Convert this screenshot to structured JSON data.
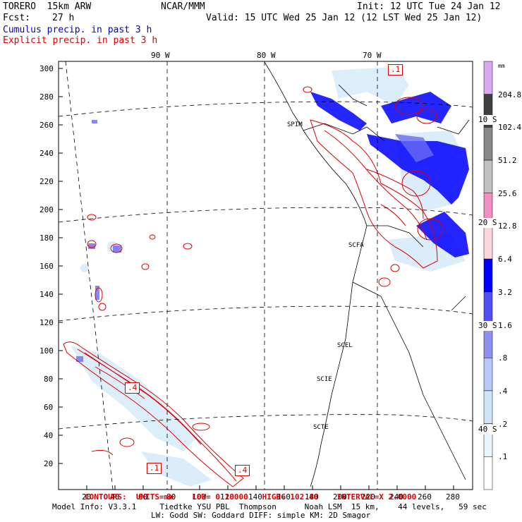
{
  "header": {
    "model": "TORERO  15km ARW",
    "org": "NCAR/MMM",
    "init": "Init: 12 UTC Tue 24 Jan 12",
    "fcst_label": "Fcst:",
    "fcst_value": "27 h",
    "valid": "Valid: 15 UTC Wed 25 Jan 12 (12 LST Wed 25 Jan 12)",
    "field1": "Cumulus precip. in past 3 h",
    "field2": "Explicit precip. in past 3 h"
  },
  "map": {
    "longitude_labels": [
      "90 W",
      "80 W",
      "70 W"
    ],
    "latitude_labels": [
      "10 S",
      "20 S",
      "30 S",
      "40 S"
    ],
    "y_ticks": [
      "20",
      "40",
      "60",
      "80",
      "100",
      "120",
      "140",
      "160",
      "180",
      "200",
      "220",
      "240",
      "260",
      "280",
      "300"
    ],
    "x_ticks": [
      "20",
      "40",
      "60",
      "80",
      "100",
      "120",
      "140",
      "160",
      "180",
      "200",
      "220",
      "240",
      "260",
      "280"
    ],
    "stations": [
      "SPIM",
      "SCFA",
      "SCEL",
      "SCIE",
      "SCTE"
    ],
    "contour_boxes": [
      ".1",
      ".4",
      ".1",
      ".4"
    ]
  },
  "colorbar": {
    "unit": "mm",
    "levels": [
      "204.8",
      "102.4",
      "51.2",
      "25.6",
      "12.8",
      "6.4",
      "3.2",
      "1.6",
      ".8",
      ".4",
      ".2",
      ".1"
    ],
    "colors": [
      "#d8a8f0",
      "#404040",
      "#888888",
      "#c0c0c0",
      "#f090c0",
      "#fcd4dc",
      "#0000ff",
      "#5050f0",
      "#9090f0",
      "#b8c8f8",
      "#d0e4f8",
      "#e8f6fc",
      "#ffffff"
    ]
  },
  "footer": {
    "contours": "CONTOURS:  UNITS=mm    LOW= 0.10000   HIGH= 102.40    INTERVAL=X 2.0000",
    "model_info": "Model Info: V3.3.1     Tiedtke YSU PBL  Thompson      Noah LSM  15 km,    44 levels,   59 sec",
    "model_info2": "LW: Godd SW: Goddard DIFF: simple KM: 2D Smagor"
  }
}
